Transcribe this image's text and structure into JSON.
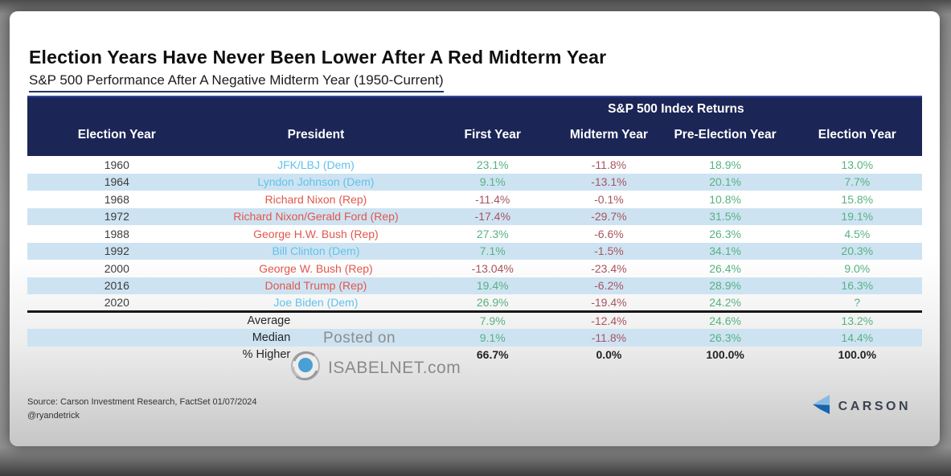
{
  "colors": {
    "header_band": "#1b2556",
    "zebra_blue": "#cde3f2",
    "positive_green": "#57b181",
    "negative_red": "#a8545e",
    "dem_blue": "#62c2ea",
    "rep_red": "#e2574d",
    "brand_light_blue": "#8ab9e2",
    "brand_dark_blue": "#1565b0"
  },
  "chart_data": {
    "type": "table",
    "title": "Election Years Have Never Been Lower After A Red Midterm Year",
    "subtitle": "S&P 500 Performance After A Negative Midterm Year (1950-Current)",
    "group_header": "S&P 500 Index Returns",
    "columns": [
      "Election Year",
      "President",
      "First Year",
      "Midterm Year",
      "Pre-Election Year",
      "Election Year"
    ],
    "rows": [
      {
        "year": "1960",
        "president": "JFK/LBJ (Dem)",
        "party": "dem",
        "values": [
          {
            "v": "23.1%",
            "c": "pos"
          },
          {
            "v": "-11.8%",
            "c": "neg"
          },
          {
            "v": "18.9%",
            "c": "pos"
          },
          {
            "v": "13.0%",
            "c": "pos"
          }
        ]
      },
      {
        "year": "1964",
        "president": "Lyndon Johnson (Dem)",
        "party": "dem",
        "values": [
          {
            "v": "9.1%",
            "c": "pos"
          },
          {
            "v": "-13.1%",
            "c": "neg"
          },
          {
            "v": "20.1%",
            "c": "pos"
          },
          {
            "v": "7.7%",
            "c": "pos"
          }
        ]
      },
      {
        "year": "1968",
        "president": "Richard Nixon (Rep)",
        "party": "rep",
        "values": [
          {
            "v": "-11.4%",
            "c": "neg"
          },
          {
            "v": "-0.1%",
            "c": "neg"
          },
          {
            "v": "10.8%",
            "c": "pos"
          },
          {
            "v": "15.8%",
            "c": "pos"
          }
        ]
      },
      {
        "year": "1972",
        "president": "Richard Nixon/Gerald Ford (Rep)",
        "party": "rep",
        "values": [
          {
            "v": "-17.4%",
            "c": "neg"
          },
          {
            "v": "-29.7%",
            "c": "neg"
          },
          {
            "v": "31.5%",
            "c": "pos"
          },
          {
            "v": "19.1%",
            "c": "pos"
          }
        ]
      },
      {
        "year": "1988",
        "president": "George H.W. Bush (Rep)",
        "party": "rep",
        "values": [
          {
            "v": "27.3%",
            "c": "pos"
          },
          {
            "v": "-6.6%",
            "c": "neg"
          },
          {
            "v": "26.3%",
            "c": "pos"
          },
          {
            "v": "4.5%",
            "c": "pos"
          }
        ]
      },
      {
        "year": "1992",
        "president": "Bill Clinton (Dem)",
        "party": "dem",
        "values": [
          {
            "v": "7.1%",
            "c": "pos"
          },
          {
            "v": "-1.5%",
            "c": "neg"
          },
          {
            "v": "34.1%",
            "c": "pos"
          },
          {
            "v": "20.3%",
            "c": "pos"
          }
        ]
      },
      {
        "year": "2000",
        "president": "George W. Bush (Rep)",
        "party": "rep",
        "values": [
          {
            "v": "-13.04%",
            "c": "neg"
          },
          {
            "v": "-23.4%",
            "c": "neg"
          },
          {
            "v": "26.4%",
            "c": "pos"
          },
          {
            "v": "9.0%",
            "c": "pos"
          }
        ]
      },
      {
        "year": "2016",
        "president": "Donald Trump (Rep)",
        "party": "rep",
        "values": [
          {
            "v": "19.4%",
            "c": "pos"
          },
          {
            "v": "-6.2%",
            "c": "neg"
          },
          {
            "v": "28.9%",
            "c": "pos"
          },
          {
            "v": "16.3%",
            "c": "pos"
          }
        ]
      },
      {
        "year": "2020",
        "president": "Joe Biden (Dem)",
        "party": "dem",
        "values": [
          {
            "v": "26.9%",
            "c": "pos"
          },
          {
            "v": "-19.4%",
            "c": "neg"
          },
          {
            "v": "24.2%",
            "c": "pos"
          },
          {
            "v": "?",
            "c": "pos"
          }
        ]
      }
    ],
    "summary": [
      {
        "label": "Average",
        "values": [
          {
            "v": "7.9%",
            "c": "pos"
          },
          {
            "v": "-12.4%",
            "c": "neg"
          },
          {
            "v": "24.6%",
            "c": "pos"
          },
          {
            "v": "13.2%",
            "c": "pos"
          }
        ]
      },
      {
        "label": "Median",
        "values": [
          {
            "v": "9.1%",
            "c": "pos"
          },
          {
            "v": "-11.8%",
            "c": "neg"
          },
          {
            "v": "26.3%",
            "c": "pos"
          },
          {
            "v": "14.4%",
            "c": "pos"
          }
        ]
      },
      {
        "label": "% Higher",
        "values": [
          {
            "v": "66.7%",
            "c": "neutral"
          },
          {
            "v": "0.0%",
            "c": "neutral"
          },
          {
            "v": "100.0%",
            "c": "neutral"
          },
          {
            "v": "100.0%",
            "c": "neutral"
          }
        ]
      }
    ]
  },
  "watermark": {
    "posted_on": "Posted on",
    "site": "ISABELNET.com"
  },
  "footer": {
    "source": "Source: Carson Investment Research, FactSet 01/07/2024",
    "handle": "@ryandetrick",
    "brand": "CARSON"
  }
}
